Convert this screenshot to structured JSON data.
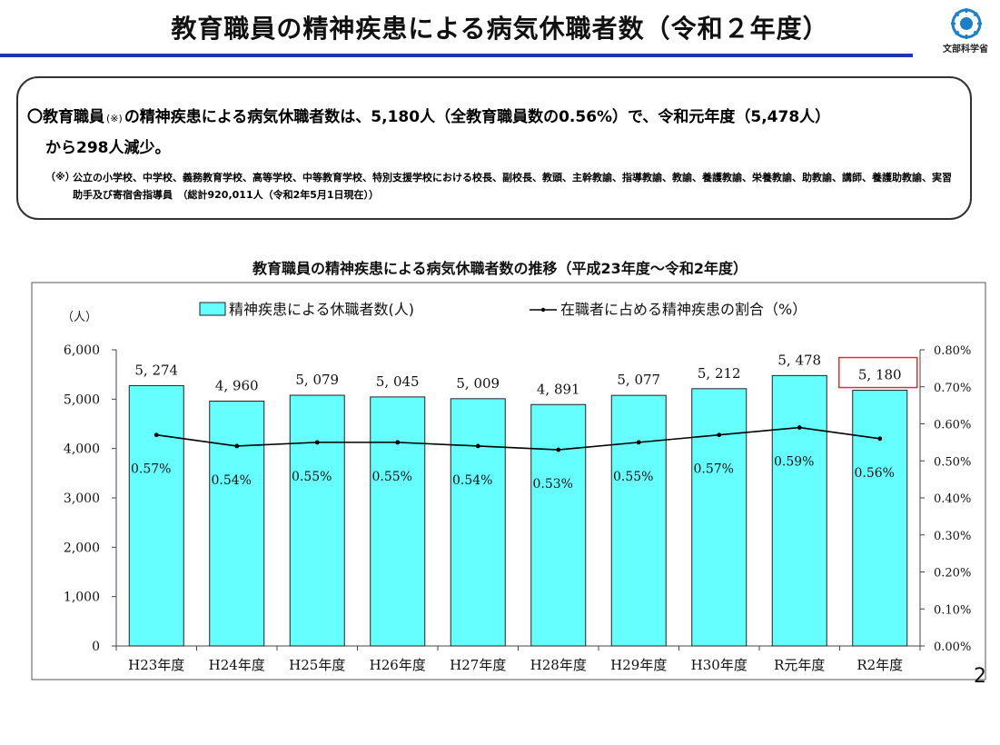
{
  "slide": {
    "title": "教育職員の精神疾患による病気休職者数（令和２年度）",
    "ministry_label": "文部科学省",
    "page_number": "2"
  },
  "summary": {
    "line1_prefix": "〇教育職員",
    "line1_note_mark": "(※)",
    "line1_suffix": "の精神疾患による病気休職者数は、5,180人（全教育職員数の0.56%）で、令和元年度（5,478人）",
    "line2": "から298人減少。",
    "note_label": "（※）",
    "note_text": "公立の小学校、中学校、義務教育学校、高等学校、中等教育学校、特別支援学校における校長、副校長、教頭、主幹教諭、指導教諭、教諭、養護教諭、栄養教諭、助教諭、講師、養護助教諭、実習助手及び寄宿舎指導員　（総計920,011人（令和2年5月1日現在））"
  },
  "chart_data": {
    "type": "bar",
    "title": "教育職員の精神疾患による病気休職者数の推移（平成23年度〜令和2年度）",
    "ylabel": "（人）",
    "categories": [
      "H23年度",
      "H24年度",
      "H25年度",
      "H26年度",
      "H27年度",
      "H28年度",
      "H29年度",
      "H30年度",
      "R元年度",
      "R2年度"
    ],
    "series": [
      {
        "name": "精神疾患による休職者数(人)",
        "type": "bar",
        "axis": "left",
        "color": "#66ffff",
        "values": [
          5274,
          4960,
          5079,
          5045,
          5009,
          4891,
          5077,
          5212,
          5478,
          5180
        ],
        "labels": [
          "5, 274",
          "4, 960",
          "5, 079",
          "5, 045",
          "5, 009",
          "4, 891",
          "5, 077",
          "5, 212",
          "5, 478",
          "5, 180"
        ]
      },
      {
        "name": "在職者に占める精神疾患の割合（%）",
        "type": "line",
        "axis": "right",
        "color": "#000000",
        "values": [
          0.57,
          0.54,
          0.55,
          0.55,
          0.54,
          0.53,
          0.55,
          0.57,
          0.59,
          0.56
        ],
        "labels": [
          "0.57%",
          "0.54%",
          "0.55%",
          "0.55%",
          "0.54%",
          "0.53%",
          "0.55%",
          "0.57%",
          "0.59%",
          "0.56%"
        ]
      }
    ],
    "ylim": [
      0,
      6000
    ],
    "yticks": [
      "0",
      "1,000",
      "2,000",
      "3,000",
      "4,000",
      "5,000",
      "6,000"
    ],
    "y2lim": [
      0,
      0.8
    ],
    "y2ticks": [
      "0.00%",
      "0.10%",
      "0.20%",
      "0.30%",
      "0.40%",
      "0.50%",
      "0.60%",
      "0.70%",
      "0.80%"
    ],
    "highlight_index": 9,
    "highlight_color": "#e03030",
    "grid": false,
    "legend_position": "top"
  }
}
